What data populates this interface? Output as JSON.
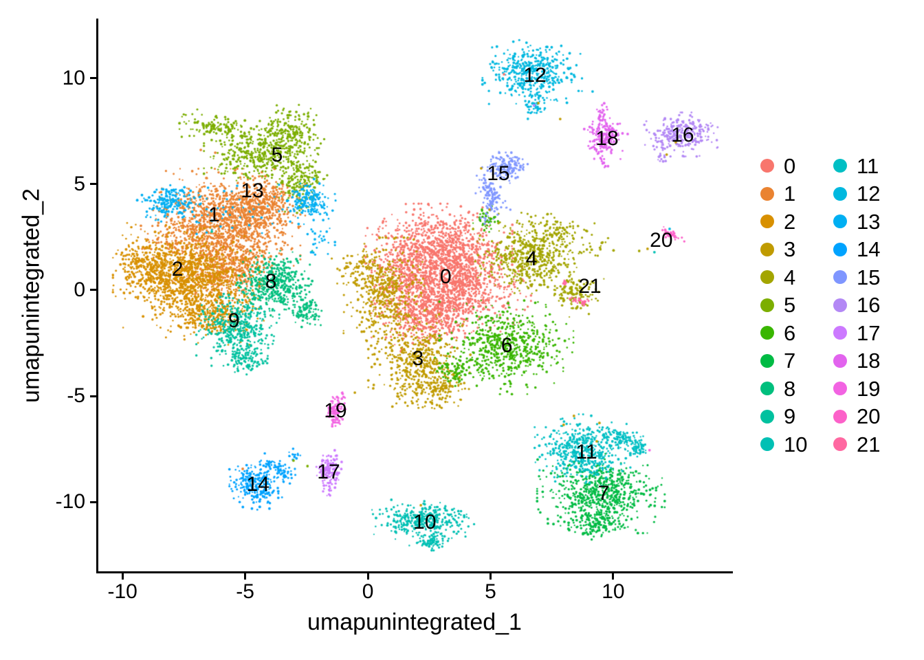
{
  "chart_data": {
    "type": "scatter",
    "title": "",
    "xlabel": "umapunintegrated_1",
    "ylabel": "umapunintegrated_2",
    "xlim": [
      -11.07,
      14.85
    ],
    "ylim": [
      -13.31,
      12.79
    ],
    "x_ticks": [
      -10,
      -5,
      0,
      5,
      10
    ],
    "y_ticks": [
      10,
      5,
      0,
      -5,
      -10
    ],
    "grid": false,
    "legend_position": "right",
    "legend_columns": 2,
    "clusters": [
      {
        "id": 0,
        "label": "0",
        "color": "#F8766D",
        "label_xy": [
          3.17,
          0.62
        ],
        "blobs": [
          [
            2.9,
            2.0,
            1.15,
            0.8,
            0,
            900
          ],
          [
            3.4,
            0.1,
            1.25,
            0.9,
            0,
            1050
          ],
          [
            2.35,
            -1.2,
            0.8,
            0.65,
            0,
            400
          ],
          [
            1.3,
            0.8,
            0.55,
            0.8,
            0,
            150
          ]
        ]
      },
      {
        "id": 1,
        "label": "1",
        "color": "#EA8331",
        "label_xy": [
          -6.27,
          3.54
        ],
        "blobs": [
          [
            -6.0,
            3.0,
            1.25,
            1.05,
            0,
            1300
          ],
          [
            -4.35,
            3.95,
            0.7,
            0.55,
            0,
            400
          ],
          [
            -5.75,
            0.9,
            0.9,
            0.6,
            0,
            400
          ]
        ]
      },
      {
        "id": 2,
        "label": "2",
        "color": "#D89000",
        "label_xy": [
          -7.76,
          0.97
        ],
        "blobs": [
          [
            -7.4,
            0.7,
            1.15,
            0.95,
            0,
            1100
          ],
          [
            -9.1,
            1.15,
            0.5,
            0.55,
            0,
            200
          ],
          [
            -6.45,
            -1.15,
            0.85,
            0.55,
            0,
            350
          ]
        ]
      },
      {
        "id": 3,
        "label": "3",
        "color": "#C09B00",
        "label_xy": [
          2.04,
          -3.25
        ],
        "blobs": [
          [
            0.7,
            -0.25,
            0.65,
            1.05,
            0,
            450
          ],
          [
            2.1,
            -3.35,
            0.8,
            0.85,
            0,
            450
          ],
          [
            2.95,
            -4.6,
            0.45,
            0.35,
            0,
            110
          ],
          [
            -0.3,
            1.05,
            0.45,
            0.5,
            0,
            90
          ],
          [
            2.3,
            -4.9,
            0.7,
            0.35,
            0,
            40
          ]
        ]
      },
      {
        "id": 4,
        "label": "4",
        "color": "#A3A500",
        "label_xy": [
          6.67,
          1.46
        ],
        "blobs": [
          [
            6.6,
            1.7,
            0.95,
            0.75,
            0,
            550
          ],
          [
            8.45,
            -0.1,
            0.45,
            0.45,
            0,
            130
          ],
          [
            7.98,
            2.92,
            0.55,
            0.25,
            -20,
            60
          ],
          [
            9.4,
            2.0,
            0.3,
            0.2,
            0,
            15
          ]
        ]
      },
      {
        "id": 5,
        "label": "5",
        "color": "#7CAE00",
        "label_xy": [
          -3.7,
          6.36
        ],
        "blobs": [
          [
            -3.2,
            7.35,
            0.55,
            0.6,
            0,
            260
          ],
          [
            -4.6,
            6.3,
            0.8,
            0.5,
            0,
            300
          ],
          [
            -6.25,
            7.7,
            0.75,
            0.28,
            -12,
            130
          ],
          [
            -2.75,
            5.15,
            0.42,
            0.6,
            0,
            180
          ]
        ]
      },
      {
        "id": 6,
        "label": "6",
        "color": "#39B600",
        "label_xy": [
          5.66,
          -2.63
        ],
        "blobs": [
          [
            5.65,
            -2.7,
            1.05,
            0.85,
            0,
            620
          ],
          [
            4.8,
            3.25,
            0.2,
            0.28,
            0,
            40
          ],
          [
            3.6,
            -3.85,
            0.33,
            0.26,
            0,
            70
          ]
        ]
      },
      {
        "id": 7,
        "label": "7",
        "color": "#00BB44",
        "label_xy": [
          9.61,
          -9.61
        ],
        "blobs": [
          [
            9.5,
            -9.6,
            1.0,
            0.72,
            0,
            650
          ],
          [
            9.35,
            -11.05,
            0.62,
            0.28,
            0,
            130
          ]
        ]
      },
      {
        "id": 8,
        "label": "8",
        "color": "#00BF7D",
        "label_xy": [
          -3.95,
          0.39
        ],
        "blobs": [
          [
            -3.8,
            0.3,
            0.65,
            0.6,
            0,
            430
          ],
          [
            -2.55,
            -1.0,
            0.32,
            0.3,
            0,
            90
          ]
        ]
      },
      {
        "id": 9,
        "label": "9",
        "color": "#00C19F",
        "label_xy": [
          -5.46,
          -1.46
        ],
        "blobs": [
          [
            -5.3,
            -1.75,
            0.65,
            0.7,
            0,
            430
          ],
          [
            -5.0,
            -3.2,
            0.35,
            0.3,
            0,
            110
          ]
        ]
      },
      {
        "id": 10,
        "label": "10",
        "color": "#00C0B4",
        "label_xy": [
          2.32,
          -10.97
        ],
        "blobs": [
          [
            2.25,
            -10.85,
            0.8,
            0.38,
            0,
            380
          ],
          [
            2.6,
            -11.9,
            0.35,
            0.15,
            0,
            70
          ]
        ]
      },
      {
        "id": 11,
        "label": "11",
        "color": "#00BFC4",
        "label_xy": [
          8.91,
          -7.66
        ],
        "blobs": [
          [
            8.75,
            -7.55,
            0.75,
            0.65,
            0,
            480
          ],
          [
            10.35,
            -7.0,
            0.45,
            0.18,
            -20,
            90
          ],
          [
            11.0,
            -7.45,
            0.2,
            0.2,
            0,
            50
          ]
        ]
      },
      {
        "id": 12,
        "label": "12",
        "color": "#00B8DF",
        "label_xy": [
          6.81,
          10.13
        ],
        "blobs": [
          [
            6.7,
            10.3,
            0.78,
            0.58,
            0,
            440
          ],
          [
            6.8,
            8.65,
            0.18,
            0.3,
            0,
            50
          ]
        ]
      },
      {
        "id": 13,
        "label": "13",
        "color": "#00AFF2",
        "label_xy": [
          -4.71,
          4.68
        ],
        "blobs": [
          [
            -8.1,
            4.2,
            0.5,
            0.4,
            0,
            190
          ],
          [
            -2.45,
            4.2,
            0.45,
            0.4,
            0,
            170
          ],
          [
            -5.3,
            3.6,
            1.5,
            0.55,
            0,
            50
          ],
          [
            -1.9,
            2.6,
            0.4,
            0.5,
            0,
            25
          ]
        ]
      },
      {
        "id": 14,
        "label": "14",
        "color": "#00A3FF",
        "label_xy": [
          -4.48,
          -9.19
        ],
        "blobs": [
          [
            -4.55,
            -9.2,
            0.42,
            0.45,
            0,
            270
          ],
          [
            -3.65,
            -8.4,
            0.33,
            0.17,
            -38,
            70
          ],
          [
            -3.0,
            -7.75,
            0.12,
            0.1,
            0,
            15
          ]
        ]
      },
      {
        "id": 15,
        "label": "15",
        "color": "#7F96FF",
        "label_xy": [
          5.32,
          5.49
        ],
        "blobs": [
          [
            5.65,
            5.8,
            0.38,
            0.3,
            0,
            150
          ],
          [
            5.05,
            4.4,
            0.2,
            0.45,
            25,
            110
          ],
          [
            4.9,
            3.4,
            0.18,
            0.3,
            0,
            15
          ]
        ]
      },
      {
        "id": 16,
        "label": "16",
        "color": "#B388F5",
        "label_xy": [
          12.83,
          7.31
        ],
        "blobs": [
          [
            12.75,
            7.35,
            0.58,
            0.4,
            0,
            280
          ],
          [
            11.95,
            6.3,
            0.15,
            0.12,
            0,
            12
          ]
        ]
      },
      {
        "id": 17,
        "label": "17",
        "color": "#CC79FF",
        "label_xy": [
          -1.6,
          -8.6
        ],
        "blobs": [
          [
            -1.6,
            -8.5,
            0.26,
            0.36,
            0,
            130
          ],
          [
            -1.6,
            -9.55,
            0.1,
            0.1,
            0,
            10
          ]
        ]
      },
      {
        "id": 18,
        "label": "18",
        "color": "#E263EE",
        "label_xy": [
          9.75,
          7.14
        ],
        "blobs": [
          [
            9.6,
            7.2,
            0.3,
            0.42,
            0,
            200
          ],
          [
            9.5,
            8.4,
            0.1,
            0.22,
            0,
            25
          ],
          [
            9.7,
            5.95,
            0.08,
            0.12,
            0,
            8
          ]
        ]
      },
      {
        "id": 19,
        "label": "19",
        "color": "#F263E2",
        "label_xy": [
          -1.32,
          -5.71
        ],
        "blobs": [
          [
            -1.35,
            -5.7,
            0.17,
            0.28,
            0,
            90
          ],
          [
            -1.05,
            -5.0,
            0.1,
            0.08,
            0,
            6
          ]
        ]
      },
      {
        "id": 20,
        "label": "20",
        "color": "#FC61C9",
        "label_xy": [
          11.96,
          2.34
        ],
        "blobs": [
          [
            12.3,
            2.65,
            0.28,
            0.08,
            -28,
            40
          ]
        ]
      },
      {
        "id": 21,
        "label": "21",
        "color": "#FF68A1",
        "label_xy": [
          9.05,
          0.16
        ],
        "blobs": [
          [
            8.65,
            -0.5,
            0.22,
            0.08,
            -15,
            25
          ],
          [
            8.0,
            0.35,
            0.07,
            0.07,
            0,
            6
          ]
        ]
      }
    ],
    "strays": [
      [
        8.4,
        -5.94,
        3
      ],
      [
        7.98,
        -6.36,
        3
      ],
      [
        9.33,
        -7.14,
        3
      ],
      [
        9.44,
        -6.27,
        3
      ],
      [
        2.16,
        -10.16,
        3
      ],
      [
        12.3,
        2.89,
        12
      ],
      [
        11.68,
        1.79,
        10
      ],
      [
        11.06,
        1.85,
        4
      ],
      [
        11.4,
        1.95,
        3
      ],
      [
        11.48,
        -7.56,
        19
      ],
      [
        -6.81,
        6.62,
        1
      ],
      [
        -6.22,
        6.49,
        1
      ],
      [
        -6.36,
        2.76,
        9
      ],
      [
        -0.53,
        -4.84,
        3
      ],
      [
        0.22,
        -4.64,
        3
      ],
      [
        1.0,
        -5.5,
        3
      ],
      [
        -1.06,
        -5.13,
        19
      ],
      [
        -1.82,
        3.31,
        13
      ],
      [
        -2.16,
        2.4,
        13
      ],
      [
        -1.34,
        2.27,
        13
      ],
      [
        6.95,
        8.83,
        3
      ],
      [
        7.84,
        8.08,
        3
      ],
      [
        4.62,
        5.75,
        3
      ],
      [
        4.96,
        3.8,
        3
      ],
      [
        5.55,
        10.19,
        0
      ],
      [
        -5.1,
        -8.44,
        1
      ],
      [
        -3.03,
        -8.05,
        5
      ],
      [
        -2.46,
        -8.31,
        5
      ],
      [
        9.16,
        9.38,
        12
      ],
      [
        6.78,
        8.73,
        17
      ],
      [
        10.59,
        7.37,
        18
      ],
      [
        12.55,
        6.98,
        3
      ],
      [
        12.18,
        6.4,
        3
      ]
    ]
  }
}
